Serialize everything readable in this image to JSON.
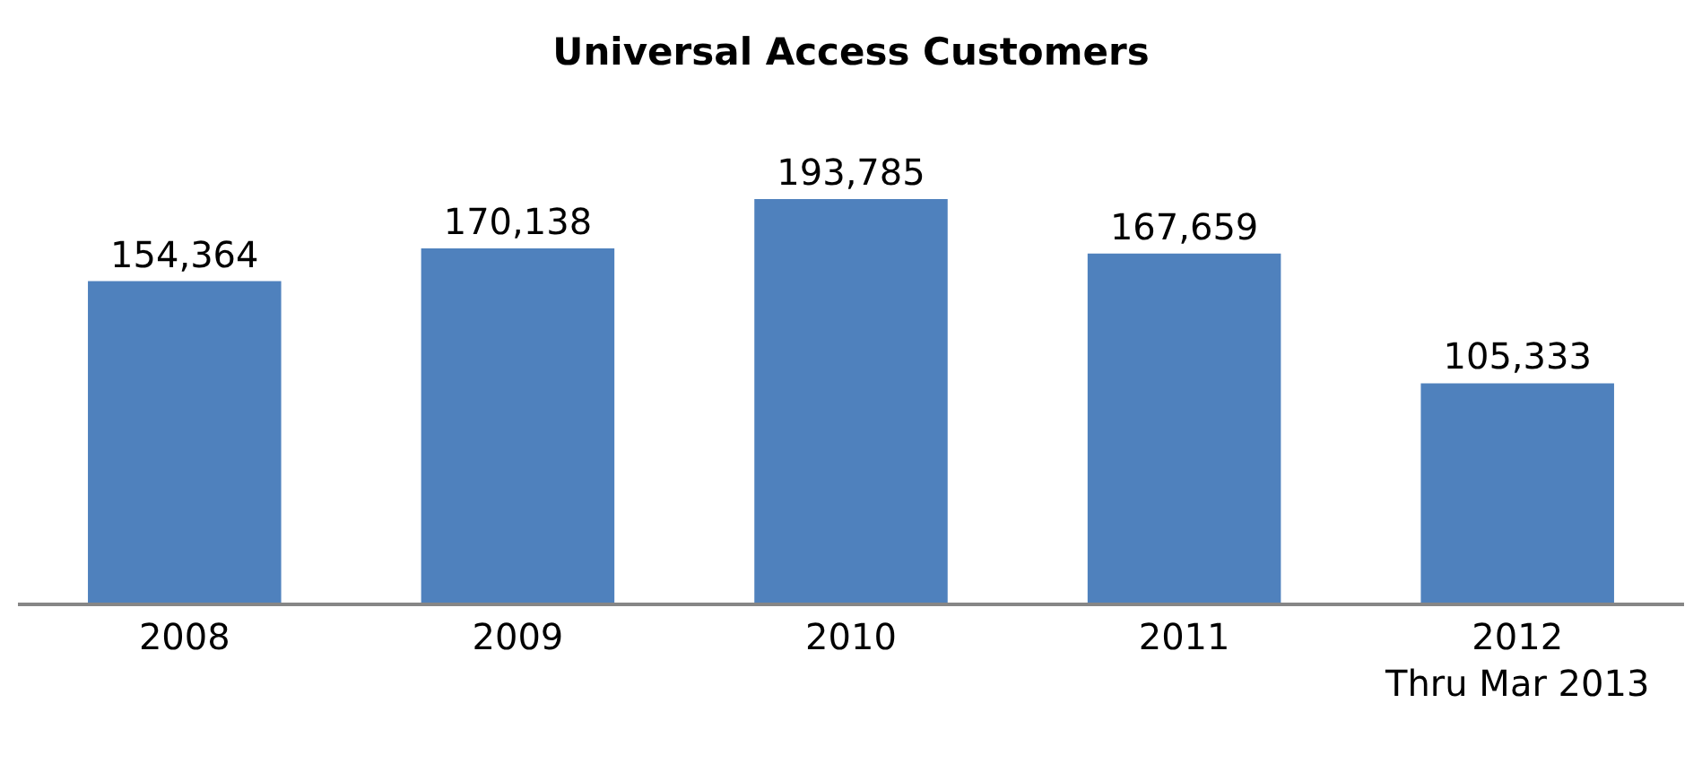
{
  "chart_data": {
    "type": "bar",
    "title": "Universal Access Customers",
    "categories": [
      "2008",
      "2009",
      "2010",
      "2011",
      "2012\nThru Mar 2013"
    ],
    "values": [
      154364,
      170138,
      193785,
      167659,
      105333
    ],
    "value_labels": [
      "154,364",
      "170,138",
      "193,785",
      "167,659",
      "105,333"
    ],
    "color": "#4f81bd"
  }
}
